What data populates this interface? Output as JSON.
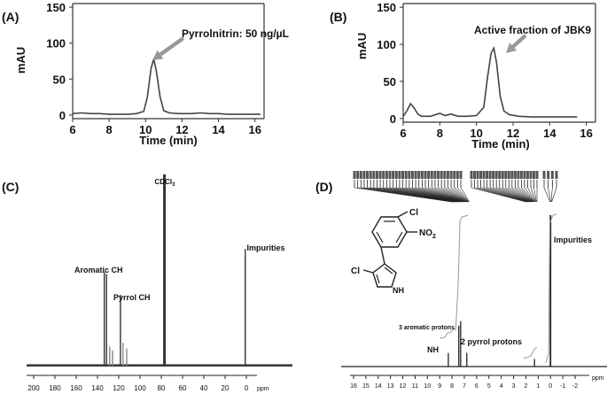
{
  "chart_data": [
    {
      "panel": "(A)",
      "type": "line",
      "title": "",
      "xlabel": "Time (min)",
      "ylabel": "mAU",
      "xlim": [
        6,
        16.5
      ],
      "ylim": [
        -5,
        155
      ],
      "xticks": [
        "6",
        "8",
        "10",
        "12",
        "14",
        "16"
      ],
      "yticks": [
        "0",
        "50",
        "100",
        "150"
      ],
      "annotation": "Pyrrolnitrin: 50 ng/µL",
      "series": [
        {
          "x": [
            6,
            6.5,
            7,
            7.5,
            8,
            8.5,
            9,
            9.5,
            9.9,
            10.1,
            10.3,
            10.45,
            10.6,
            10.8,
            11,
            11.3,
            11.8,
            12.5,
            13,
            13.5,
            14,
            14.5,
            15,
            15.5,
            16,
            16.3
          ],
          "y": [
            2,
            3,
            2,
            2,
            1,
            1,
            1,
            2,
            5,
            25,
            65,
            78,
            60,
            25,
            6,
            3,
            2,
            2,
            3,
            2,
            2,
            1,
            1,
            1,
            1,
            1
          ]
        }
      ]
    },
    {
      "panel": "(B)",
      "type": "line",
      "title": "",
      "xlabel": "Time (min)",
      "ylabel": "mAU",
      "xlim": [
        6,
        16.5
      ],
      "ylim": [
        -5,
        155
      ],
      "xticks": [
        "6",
        "8",
        "10",
        "12",
        "14",
        "16"
      ],
      "yticks": [
        "0",
        "50",
        "100",
        "150"
      ],
      "annotation": "Active fraction of JBK9",
      "series": [
        {
          "x": [
            6,
            6.2,
            6.4,
            6.6,
            6.8,
            7,
            7.5,
            8,
            8.3,
            8.6,
            9,
            9.5,
            10,
            10.4,
            10.6,
            10.8,
            10.95,
            11.1,
            11.3,
            11.5,
            11.8,
            12.3,
            13,
            14,
            15,
            15.5
          ],
          "y": [
            3,
            10,
            20,
            14,
            6,
            3,
            3,
            7,
            4,
            6,
            3,
            3,
            4,
            15,
            55,
            88,
            95,
            75,
            30,
            10,
            5,
            3,
            2,
            2,
            2,
            2
          ]
        }
      ]
    },
    {
      "panel": "(C)",
      "type": "bar",
      "title": "",
      "xlabel": "ppm",
      "ylabel": "",
      "xlim": [
        220,
        -10
      ],
      "ylim": [
        0,
        100
      ],
      "xticks": [
        "200",
        "180",
        "160",
        "140",
        "120",
        "100",
        "80",
        "60",
        "40",
        "20",
        "0"
      ],
      "peaks": [
        {
          "ppm": 133.6,
          "height": 49
        },
        {
          "ppm": 131.5,
          "height": 48
        },
        {
          "ppm": 128.5,
          "height": 10
        },
        {
          "ppm": 125.8,
          "height": 8
        },
        {
          "ppm": 118.4,
          "height": 37
        },
        {
          "ppm": 116.0,
          "height": 12
        },
        {
          "ppm": 112.5,
          "height": 9
        },
        {
          "ppm": 77.0,
          "height": 100
        },
        {
          "ppm": 1.0,
          "height": 61
        }
      ],
      "labels": {
        "cdcl3": "CDCl",
        "cdcl3_sub": "3",
        "impurities": "Impurities",
        "aromatic": "Aromatic CH",
        "pyrrol": "Pyrrol CH"
      }
    },
    {
      "panel": "(D)",
      "type": "line",
      "title": "",
      "xlabel": "ppm",
      "ylabel": "",
      "xlim": [
        16.5,
        -3.5
      ],
      "xticks": [
        "16",
        "15",
        "14",
        "13",
        "12",
        "11",
        "10",
        "9",
        "8",
        "7",
        "6",
        "5",
        "4",
        "3",
        "2",
        "1",
        "0",
        "-1",
        "-2"
      ],
      "peaks": [
        {
          "ppm": 8.3,
          "height": 9
        },
        {
          "ppm": 7.45,
          "height": 27
        },
        {
          "ppm": 7.3,
          "height": 30
        },
        {
          "ppm": 6.8,
          "height": 9
        },
        {
          "ppm": 1.3,
          "height": 5
        },
        {
          "ppm": 0.0,
          "height": 100
        }
      ],
      "labels": {
        "nh": "NH",
        "aromatic_protons": "3 aromatic protons",
        "pyrrol_protons": "2 pyrrol protons",
        "impurities": "Impurities"
      },
      "structure_labels": {
        "cl_top": "Cl",
        "nitro": "NO",
        "nitro_sub": "2",
        "cl_left": "Cl",
        "nh": "NH"
      }
    }
  ],
  "panel_labels": [
    "(A)",
    "(B)",
    "(C)",
    "(D)"
  ]
}
